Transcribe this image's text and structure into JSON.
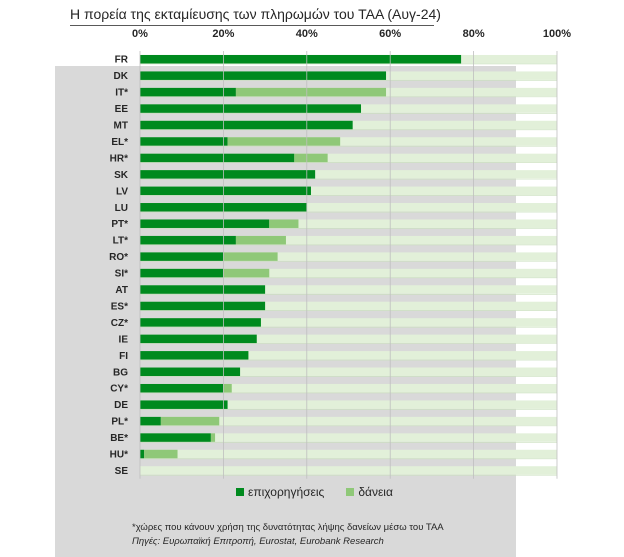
{
  "title": "Η πορεία της εκταμίευσης των πληρωμών του ΤΑΑ (Αυγ-24)",
  "footnote": "*χώρες που κάνουν χρήση της δυνατότητας λήψης δανείων μέσω του ΤΑΑ",
  "source": "Πηγές: Ευρωπαϊκή Επιτροπή, Eurostat,  Eurobank Research",
  "colors": {
    "grants": "#008a1e",
    "loans": "#8fc878",
    "remaining": "#e2f0d9",
    "panel": "#d9d9d9"
  },
  "chart_data": {
    "type": "bar",
    "orientation": "horizontal",
    "stacked": true,
    "title": "Η πορεία της εκταμίευσης των πληρωμών του ΤΑΑ (Αυγ-24)",
    "xlim": [
      0,
      100
    ],
    "x_ticks": [
      "0%",
      "20%",
      "40%",
      "60%",
      "80%",
      "100%"
    ],
    "x_axis_position": "top",
    "legend_position": "bottom",
    "categories": [
      "FR",
      "DK",
      "IT*",
      "EE",
      "MT",
      "EL*",
      "HR*",
      "SK",
      "LV",
      "LU",
      "PT*",
      "LT*",
      "RO*",
      "SI*",
      "AT",
      "ES*",
      "CZ*",
      "IE",
      "FI",
      "BG",
      "CY*",
      "DE",
      "PL*",
      "BE*",
      "HU*",
      "SE"
    ],
    "series": [
      {
        "name": "επιχορηγήσεις",
        "color": "#008a1e",
        "values": [
          77,
          59,
          23,
          53,
          51,
          21,
          37,
          42,
          41,
          40,
          31,
          23,
          20,
          20,
          30,
          30,
          29,
          28,
          26,
          24,
          20,
          21,
          5,
          17,
          1,
          0
        ]
      },
      {
        "name": "δάνεια",
        "color": "#8fc878",
        "values": [
          0,
          0,
          36,
          0,
          0,
          27,
          8,
          0,
          0,
          0,
          7,
          12,
          13,
          11,
          0,
          0,
          0,
          0,
          0,
          0,
          2,
          0,
          14,
          1,
          8,
          0
        ]
      }
    ]
  }
}
